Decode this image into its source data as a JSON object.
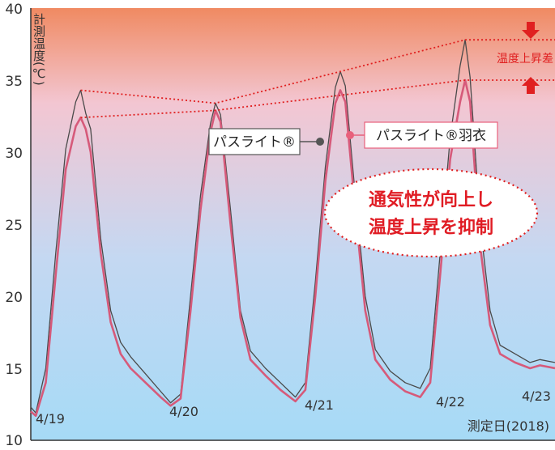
{
  "chart_data": {
    "type": "line",
    "title": "",
    "ylabel": "計測温度(℃)",
    "xlabel": "測定日(2018)",
    "ylim": [
      10,
      40
    ],
    "yticks": [
      "10",
      "15",
      "20",
      "25",
      "30",
      "35",
      "40"
    ],
    "date_labels": [
      "4/19",
      "4/20",
      "4/21",
      "4/22",
      "4/23"
    ],
    "x_domain": [
      "2018-04-19 00:00",
      "2018-04-23 09:00"
    ],
    "background_gradient": [
      "#f08a62",
      "#f3c6d2",
      "#c4d8f2",
      "#a6daf6"
    ],
    "series": [
      {
        "name": "パスライト®",
        "color": "#4a4a4a",
        "points": [
          [
            "2018-04-19 00:00",
            12.3
          ],
          [
            "2018-04-19 01:00",
            11.9
          ],
          [
            "2018-04-19 03:00",
            15.0
          ],
          [
            "2018-04-19 05:00",
            23.0
          ],
          [
            "2018-04-19 07:00",
            30.2
          ],
          [
            "2018-04-19 09:00",
            33.5
          ],
          [
            "2018-04-19 10:00",
            34.3
          ],
          [
            "2018-04-19 11:00",
            32.7
          ],
          [
            "2018-04-19 12:00",
            31.6
          ],
          [
            "2018-04-19 14:00",
            24.0
          ],
          [
            "2018-04-19 16:00",
            19.0
          ],
          [
            "2018-04-19 18:00",
            16.8
          ],
          [
            "2018-04-19 20:00",
            15.8
          ],
          [
            "2018-04-19 23:00",
            14.6
          ],
          [
            "2018-04-20 02:00",
            13.4
          ],
          [
            "2018-04-20 04:00",
            12.6
          ],
          [
            "2018-04-20 06:00",
            13.2
          ],
          [
            "2018-04-20 08:00",
            20.0
          ],
          [
            "2018-04-20 10:00",
            27.0
          ],
          [
            "2018-04-20 12:00",
            32.0
          ],
          [
            "2018-04-20 13:00",
            33.4
          ],
          [
            "2018-04-20 14:00",
            32.6
          ],
          [
            "2018-04-20 16:00",
            26.0
          ],
          [
            "2018-04-20 18:00",
            19.0
          ],
          [
            "2018-04-20 20:00",
            16.2
          ],
          [
            "2018-04-20 23:00",
            15.0
          ],
          [
            "2018-04-21 02:00",
            14.0
          ],
          [
            "2018-04-21 05:00",
            13.0
          ],
          [
            "2018-04-21 07:00",
            14.0
          ],
          [
            "2018-04-21 09:00",
            21.0
          ],
          [
            "2018-04-21 11:00",
            29.0
          ],
          [
            "2018-04-21 13:00",
            34.5
          ],
          [
            "2018-04-21 14:00",
            35.6
          ],
          [
            "2018-04-21 15:00",
            34.6
          ],
          [
            "2018-04-21 17:00",
            27.0
          ],
          [
            "2018-04-21 19:00",
            20.0
          ],
          [
            "2018-04-21 21:00",
            16.3
          ],
          [
            "2018-04-22 00:00",
            14.8
          ],
          [
            "2018-04-22 03:00",
            14.0
          ],
          [
            "2018-04-22 06:00",
            13.6
          ],
          [
            "2018-04-22 08:00",
            15.0
          ],
          [
            "2018-04-22 10:00",
            23.0
          ],
          [
            "2018-04-22 12:00",
            31.0
          ],
          [
            "2018-04-22 14:00",
            36.0
          ],
          [
            "2018-04-22 15:00",
            37.8
          ],
          [
            "2018-04-22 16:00",
            35.2
          ],
          [
            "2018-04-22 18:00",
            25.0
          ],
          [
            "2018-04-22 20:00",
            19.0
          ],
          [
            "2018-04-22 22:00",
            16.6
          ],
          [
            "2018-04-23 01:00",
            16.0
          ],
          [
            "2018-04-23 04:00",
            15.4
          ],
          [
            "2018-04-23 06:00",
            15.6
          ],
          [
            "2018-04-23 09:00",
            15.4
          ]
        ]
      },
      {
        "name": "パスライト®羽衣",
        "color": "#d65a7a",
        "points": [
          [
            "2018-04-19 00:00",
            12.0
          ],
          [
            "2018-04-19 01:00",
            11.7
          ],
          [
            "2018-04-19 03:00",
            14.0
          ],
          [
            "2018-04-19 05:00",
            21.5
          ],
          [
            "2018-04-19 07:00",
            28.8
          ],
          [
            "2018-04-19 09:00",
            31.8
          ],
          [
            "2018-04-19 10:00",
            32.4
          ],
          [
            "2018-04-19 11:00",
            31.6
          ],
          [
            "2018-04-19 12:00",
            30.0
          ],
          [
            "2018-04-19 14:00",
            23.0
          ],
          [
            "2018-04-19 16:00",
            18.2
          ],
          [
            "2018-04-19 18:00",
            16.0
          ],
          [
            "2018-04-19 20:00",
            15.0
          ],
          [
            "2018-04-19 23:00",
            14.0
          ],
          [
            "2018-04-20 02:00",
            13.0
          ],
          [
            "2018-04-20 04:00",
            12.4
          ],
          [
            "2018-04-20 06:00",
            12.9
          ],
          [
            "2018-04-20 08:00",
            19.0
          ],
          [
            "2018-04-20 10:00",
            26.0
          ],
          [
            "2018-04-20 12:00",
            31.4
          ],
          [
            "2018-04-20 13:00",
            32.9
          ],
          [
            "2018-04-20 14:00",
            32.1
          ],
          [
            "2018-04-20 16:00",
            25.0
          ],
          [
            "2018-04-20 18:00",
            18.5
          ],
          [
            "2018-04-20 20:00",
            15.6
          ],
          [
            "2018-04-20 23:00",
            14.5
          ],
          [
            "2018-04-21 02:00",
            13.5
          ],
          [
            "2018-04-21 05:00",
            12.7
          ],
          [
            "2018-04-21 07:00",
            13.5
          ],
          [
            "2018-04-21 09:00",
            20.0
          ],
          [
            "2018-04-21 11:00",
            28.0
          ],
          [
            "2018-04-21 13:00",
            33.4
          ],
          [
            "2018-04-21 14:00",
            34.3
          ],
          [
            "2018-04-21 15:00",
            33.5
          ],
          [
            "2018-04-21 17:00",
            26.0
          ],
          [
            "2018-04-21 19:00",
            19.0
          ],
          [
            "2018-04-21 21:00",
            15.6
          ],
          [
            "2018-04-22 00:00",
            14.2
          ],
          [
            "2018-04-22 03:00",
            13.4
          ],
          [
            "2018-04-22 06:00",
            13.0
          ],
          [
            "2018-04-22 08:00",
            14.0
          ],
          [
            "2018-04-22 10:00",
            21.5
          ],
          [
            "2018-04-22 12:00",
            29.5
          ],
          [
            "2018-04-22 14:00",
            33.5
          ],
          [
            "2018-04-22 15:00",
            35.0
          ],
          [
            "2018-04-22 16:00",
            33.5
          ],
          [
            "2018-04-22 18:00",
            23.5
          ],
          [
            "2018-04-22 20:00",
            18.0
          ],
          [
            "2018-04-22 22:00",
            16.0
          ],
          [
            "2018-04-23 01:00",
            15.4
          ],
          [
            "2018-04-23 04:00",
            15.0
          ],
          [
            "2018-04-23 06:00",
            15.2
          ],
          [
            "2018-04-23 09:00",
            15.0
          ]
        ]
      }
    ],
    "guide_lines": {
      "color": "#e02020",
      "upper": [
        [
          "2018-04-19 10:00",
          34.3
        ],
        [
          "2018-04-20 13:00",
          33.4
        ],
        [
          "2018-04-22 15:00",
          37.8
        ],
        [
          "2018-04-23 09:00",
          37.8
        ]
      ],
      "lower": [
        [
          "2018-04-19 10:00",
          32.4
        ],
        [
          "2018-04-20 13:00",
          32.9
        ],
        [
          "2018-04-22 15:00",
          35.0
        ],
        [
          "2018-04-23 09:00",
          35.0
        ]
      ]
    },
    "annotations": {
      "diff_label": "温度上昇差",
      "legend_plain": "パスライト®",
      "legend_hagoromo": "パスライト®羽衣",
      "callout_line1": "通気性が向上し",
      "callout_line2": "温度上昇を抑制"
    },
    "grid": false
  }
}
